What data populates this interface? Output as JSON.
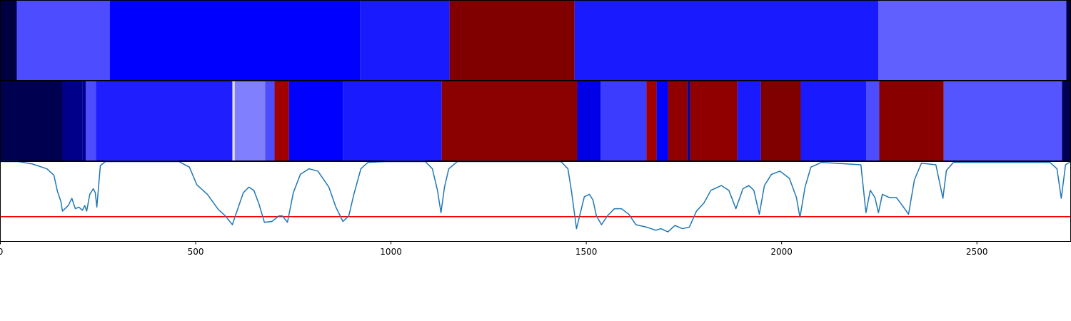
{
  "chart_data": [
    {
      "type": "strip",
      "xlim": [
        0,
        2740
      ],
      "segments": [
        {
          "start": 0,
          "end": 42,
          "color": "#000040"
        },
        {
          "start": 42,
          "end": 280,
          "color": "#4d4dff"
        },
        {
          "start": 280,
          "end": 921,
          "color": "#0000ff"
        },
        {
          "start": 921,
          "end": 1150,
          "color": "#1a1aff"
        },
        {
          "start": 1150,
          "end": 1470,
          "color": "#800000"
        },
        {
          "start": 1470,
          "end": 2248,
          "color": "#1a1aff"
        },
        {
          "start": 2248,
          "end": 2729,
          "color": "#6060ff"
        },
        {
          "start": 2729,
          "end": 2740,
          "color": "#000040"
        }
      ]
    },
    {
      "type": "strip",
      "xlim": [
        0,
        2740
      ],
      "segments": [
        {
          "start": 0,
          "end": 159,
          "color": "#000050"
        },
        {
          "start": 159,
          "end": 210,
          "color": "#00008b"
        },
        {
          "start": 210,
          "end": 219,
          "color": "#000090"
        },
        {
          "start": 219,
          "end": 245,
          "color": "#4d4dff"
        },
        {
          "start": 245,
          "end": 594,
          "color": "#1e1eff"
        },
        {
          "start": 594,
          "end": 600,
          "color": "#e0e0ff"
        },
        {
          "start": 600,
          "end": 678,
          "color": "#8080ff"
        },
        {
          "start": 678,
          "end": 702,
          "color": "#4d4dff"
        },
        {
          "start": 702,
          "end": 739,
          "color": "#a00000"
        },
        {
          "start": 739,
          "end": 877,
          "color": "#0000ff"
        },
        {
          "start": 877,
          "end": 1130,
          "color": "#1a1aff"
        },
        {
          "start": 1130,
          "end": 1477,
          "color": "#8b0000"
        },
        {
          "start": 1477,
          "end": 1537,
          "color": "#0000e6"
        },
        {
          "start": 1537,
          "end": 1654,
          "color": "#3c3cff"
        },
        {
          "start": 1654,
          "end": 1680,
          "color": "#a00000"
        },
        {
          "start": 1680,
          "end": 1709,
          "color": "#0000ff"
        },
        {
          "start": 1709,
          "end": 1759,
          "color": "#900000"
        },
        {
          "start": 1759,
          "end": 1766,
          "color": "#0000a0"
        },
        {
          "start": 1766,
          "end": 1887,
          "color": "#900000"
        },
        {
          "start": 1887,
          "end": 1947,
          "color": "#1a1aff"
        },
        {
          "start": 1947,
          "end": 2049,
          "color": "#800000"
        },
        {
          "start": 2049,
          "end": 2217,
          "color": "#1a1aff"
        },
        {
          "start": 2217,
          "end": 2250,
          "color": "#4d4dff"
        },
        {
          "start": 2250,
          "end": 2415,
          "color": "#880000"
        },
        {
          "start": 2415,
          "end": 2718,
          "color": "#5555ff"
        },
        {
          "start": 2718,
          "end": 2740,
          "color": "#000050"
        }
      ]
    },
    {
      "type": "line",
      "xlim": [
        0,
        2740
      ],
      "ylim": [
        0,
        1
      ],
      "xticks": [
        0,
        500,
        1000,
        1500,
        2000,
        2500
      ],
      "color": "#1f77b4",
      "threshold": {
        "value": 0.31,
        "color": "#ff0000"
      },
      "x": [
        0,
        46,
        82,
        119,
        137,
        146,
        155,
        159,
        174,
        183,
        192,
        201,
        210,
        216,
        221,
        229,
        238,
        243,
        247,
        256,
        269,
        457,
        484,
        503,
        530,
        558,
        576,
        594,
        603,
        622,
        636,
        649,
        662,
        676,
        695,
        713,
        722,
        735,
        750,
        768,
        790,
        813,
        841,
        859,
        877,
        892,
        905,
        923,
        941,
        987,
        1088,
        1106,
        1119,
        1128,
        1137,
        1148,
        1170,
        1435,
        1453,
        1462,
        1475,
        1484,
        1495,
        1508,
        1517,
        1526,
        1539,
        1554,
        1572,
        1590,
        1609,
        1627,
        1654,
        1678,
        1691,
        1709,
        1727,
        1746,
        1764,
        1782,
        1801,
        1819,
        1846,
        1865,
        1883,
        1901,
        1916,
        1929,
        1943,
        1956,
        1974,
        1996,
        2020,
        2038,
        2047,
        2060,
        2075,
        2102,
        2203,
        2216,
        2227,
        2239,
        2248,
        2258,
        2276,
        2294,
        2312,
        2325,
        2340,
        2358,
        2395,
        2413,
        2422,
        2440,
        2687,
        2705,
        2716,
        2727,
        2740
      ],
      "values": [
        1.0,
        1.0,
        0.97,
        0.91,
        0.83,
        0.63,
        0.5,
        0.38,
        0.45,
        0.54,
        0.41,
        0.43,
        0.39,
        0.45,
        0.38,
        0.59,
        0.66,
        0.61,
        0.43,
        0.95,
        1.0,
        1.0,
        0.93,
        0.71,
        0.59,
        0.4,
        0.32,
        0.21,
        0.34,
        0.61,
        0.68,
        0.64,
        0.47,
        0.24,
        0.25,
        0.32,
        0.32,
        0.24,
        0.61,
        0.84,
        0.91,
        0.88,
        0.68,
        0.43,
        0.25,
        0.32,
        0.59,
        0.91,
        0.99,
        1.0,
        1.0,
        0.91,
        0.64,
        0.36,
        0.68,
        0.91,
        1.0,
        1.0,
        0.91,
        0.63,
        0.16,
        0.34,
        0.56,
        0.59,
        0.52,
        0.32,
        0.21,
        0.32,
        0.41,
        0.41,
        0.34,
        0.21,
        0.18,
        0.14,
        0.16,
        0.12,
        0.2,
        0.16,
        0.18,
        0.38,
        0.48,
        0.64,
        0.7,
        0.64,
        0.41,
        0.66,
        0.7,
        0.64,
        0.34,
        0.7,
        0.84,
        0.88,
        0.79,
        0.55,
        0.3,
        0.68,
        0.93,
        0.99,
        0.96,
        0.36,
        0.64,
        0.55,
        0.36,
        0.59,
        0.55,
        0.55,
        0.43,
        0.34,
        0.77,
        0.98,
        0.96,
        0.54,
        0.89,
        0.99,
        0.99,
        0.91,
        0.54,
        0.96,
        1.0
      ]
    }
  ]
}
